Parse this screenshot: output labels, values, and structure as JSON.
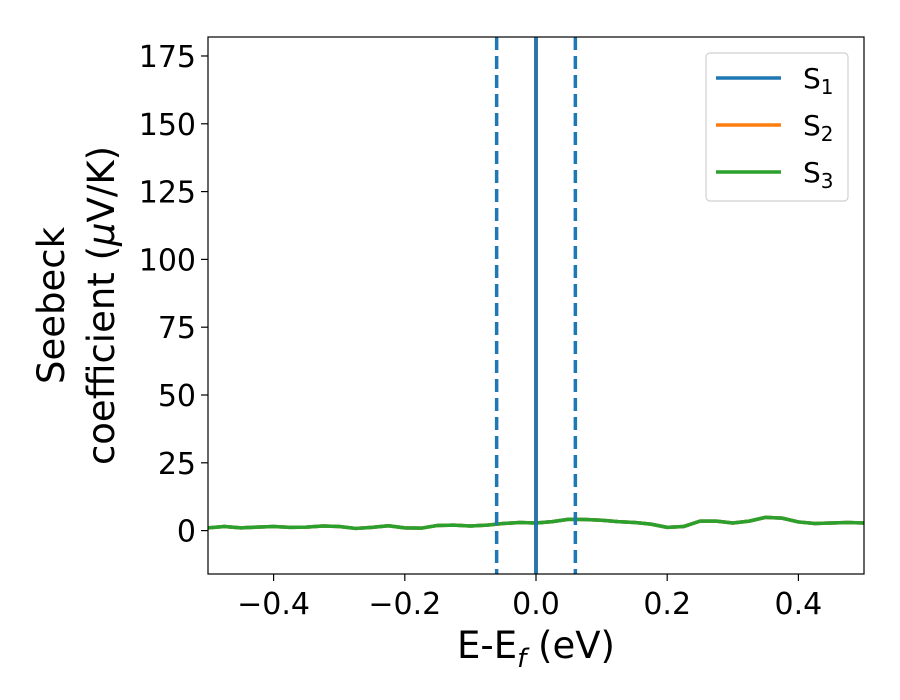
{
  "chart_data": {
    "type": "line",
    "xlabel_parts": {
      "main": "E-E",
      "sub": "f",
      "rest": " (eV)"
    },
    "ylabel_lines": [
      "Seebeck",
      "coefficient  (",
      "μ",
      "V/K)"
    ],
    "xlim": [
      -0.5,
      0.5
    ],
    "ylim": [
      -16,
      182
    ],
    "xticks": [
      -0.4,
      -0.2,
      0.0,
      0.2,
      0.4
    ],
    "xtick_labels": [
      "−0.4",
      "−0.2",
      "0.0",
      "0.2",
      "0.4"
    ],
    "yticks": [
      0,
      25,
      50,
      75,
      100,
      125,
      150,
      175
    ],
    "ytick_labels": [
      "0",
      "25",
      "50",
      "75",
      "100",
      "125",
      "150",
      "175"
    ],
    "grid": false,
    "legend_placement": "top-right",
    "vlines": [
      {
        "x": 0.0,
        "style": "solid",
        "color": "#000000"
      },
      {
        "x": 0.0,
        "style": "solid",
        "color": "#1f77b4"
      },
      {
        "x": -0.06,
        "style": "dashed",
        "color": "#1f77b4"
      },
      {
        "x": 0.06,
        "style": "dashed",
        "color": "#1f77b4"
      }
    ],
    "x": [
      -0.5,
      -0.475,
      -0.45,
      -0.425,
      -0.4,
      -0.375,
      -0.35,
      -0.325,
      -0.3,
      -0.275,
      -0.25,
      -0.225,
      -0.2,
      -0.175,
      -0.15,
      -0.125,
      -0.1,
      -0.075,
      -0.05,
      -0.025,
      0.0,
      0.025,
      0.05,
      0.075,
      0.1,
      0.125,
      0.15,
      0.175,
      0.2,
      0.225,
      0.25,
      0.275,
      0.3,
      0.325,
      0.35,
      0.375,
      0.4,
      0.425,
      0.45,
      0.475,
      0.5
    ],
    "series": [
      {
        "name_main": "S",
        "name_sub": "1",
        "color": "#1f77b4",
        "values": [
          1.0,
          1.5,
          1.0,
          1.3,
          1.5,
          1.2,
          1.3,
          1.7,
          1.5,
          0.8,
          1.2,
          1.8,
          1.0,
          0.9,
          1.9,
          2.0,
          1.7,
          2.0,
          2.6,
          3.0,
          2.8,
          3.3,
          4.2,
          4.1,
          3.8,
          3.3,
          3.0,
          2.4,
          1.2,
          1.5,
          3.5,
          3.5,
          2.8,
          3.5,
          4.9,
          4.6,
          3.2,
          2.6,
          2.8,
          3.0,
          2.8
        ]
      },
      {
        "name_main": "S",
        "name_sub": "2",
        "color": "#ff7f0e",
        "values": [
          1.0,
          1.5,
          1.0,
          1.3,
          1.5,
          1.2,
          1.3,
          1.7,
          1.5,
          0.8,
          1.2,
          1.8,
          1.0,
          0.9,
          1.9,
          2.0,
          1.7,
          2.0,
          2.6,
          3.0,
          2.8,
          3.3,
          4.2,
          4.1,
          3.8,
          3.3,
          3.0,
          2.4,
          1.2,
          1.5,
          3.5,
          3.5,
          2.8,
          3.5,
          4.9,
          4.6,
          3.2,
          2.6,
          2.8,
          3.0,
          2.8
        ]
      },
      {
        "name_main": "S",
        "name_sub": "3",
        "color": "#2ca02c",
        "values": [
          1.0,
          1.5,
          1.0,
          1.3,
          1.5,
          1.2,
          1.3,
          1.7,
          1.5,
          0.8,
          1.2,
          1.8,
          1.0,
          0.9,
          1.9,
          2.0,
          1.7,
          2.0,
          2.6,
          3.0,
          2.8,
          3.3,
          4.2,
          4.1,
          3.8,
          3.3,
          3.0,
          2.4,
          1.2,
          1.5,
          3.5,
          3.5,
          2.8,
          3.5,
          4.9,
          4.6,
          3.2,
          2.6,
          2.8,
          3.0,
          2.8
        ]
      }
    ]
  }
}
